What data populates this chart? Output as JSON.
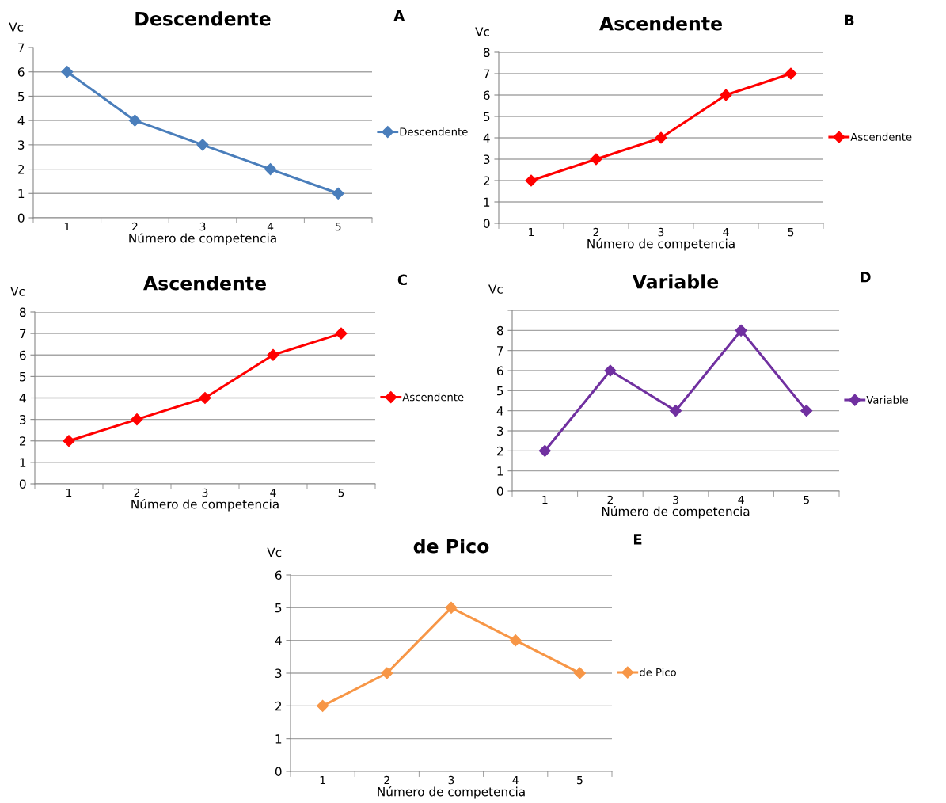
{
  "chart_data": [
    {
      "type": "line",
      "title": "Descendente",
      "xlabel": "Número de competencia",
      "ylabel": "Vc",
      "annotations": [
        "A"
      ],
      "categories": [
        "1",
        "2",
        "3",
        "4",
        "5"
      ],
      "series": [
        {
          "name": "Descendente",
          "color": "#4a7ebb",
          "values": [
            6,
            4,
            3,
            2,
            1
          ]
        }
      ],
      "ylim": [
        0,
        7
      ],
      "yticks": [
        0,
        1,
        2,
        3,
        4,
        5,
        6,
        7
      ],
      "grid": "y",
      "legend": "right",
      "marker": "diamond",
      "line_style": "solid"
    },
    {
      "type": "line",
      "title": "Ascendente",
      "xlabel": "Número de competencia",
      "ylabel": "Vc",
      "annotations": [
        "B"
      ],
      "categories": [
        "1",
        "2",
        "3",
        "4",
        "5"
      ],
      "series": [
        {
          "name": "Ascendente",
          "color": "#ff0000",
          "values": [
            2,
            3,
            4,
            6,
            7
          ]
        }
      ],
      "ylim": [
        0,
        8
      ],
      "yticks": [
        0,
        1,
        2,
        3,
        4,
        5,
        6,
        7,
        8
      ],
      "grid": "y",
      "legend": "right",
      "marker": "diamond",
      "line_style": "solid"
    },
    {
      "type": "line",
      "title": "Ascendente",
      "xlabel": "Número de competencia",
      "ylabel": "Vc",
      "annotations": [
        "C"
      ],
      "categories": [
        "1",
        "2",
        "3",
        "4",
        "5"
      ],
      "series": [
        {
          "name": "Ascendente",
          "color": "#ff0000",
          "values": [
            2,
            3,
            4,
            6,
            7
          ]
        }
      ],
      "ylim": [
        0,
        8
      ],
      "yticks": [
        0,
        1,
        2,
        3,
        4,
        5,
        6,
        7,
        8
      ],
      "grid": "y",
      "legend": "right",
      "marker": "diamond",
      "line_style": "solid"
    },
    {
      "type": "line",
      "title": "Variable",
      "xlabel": "Número de competencia",
      "ylabel": "Vc",
      "annotations": [
        "D"
      ],
      "categories": [
        "1",
        "2",
        "3",
        "4",
        "5"
      ],
      "series": [
        {
          "name": "Variable",
          "color": "#7030a0",
          "values": [
            2,
            6,
            4,
            8,
            4
          ]
        }
      ],
      "ylim": [
        0,
        9
      ],
      "yticks": [
        0,
        1,
        2,
        3,
        4,
        5,
        6,
        7,
        8,
        {
          "value": 9,
          "label": null
        }
      ],
      "grid": "y",
      "legend": "right",
      "marker": "diamond",
      "line_style": "solid"
    },
    {
      "type": "line",
      "title": "de Pico",
      "xlabel": "Número de competencia",
      "ylabel": "Vc",
      "annotations": [
        "E"
      ],
      "categories": [
        "1",
        "2",
        "3",
        "4",
        "5"
      ],
      "series": [
        {
          "name": "de Pico",
          "color": "#f79646",
          "values": [
            2,
            3,
            5,
            4,
            3
          ]
        }
      ],
      "ylim": [
        0,
        6
      ],
      "yticks": [
        0,
        1,
        2,
        3,
        4,
        5,
        6
      ],
      "grid": "y",
      "legend": "right",
      "marker": "diamond",
      "line_style": "solid"
    }
  ]
}
